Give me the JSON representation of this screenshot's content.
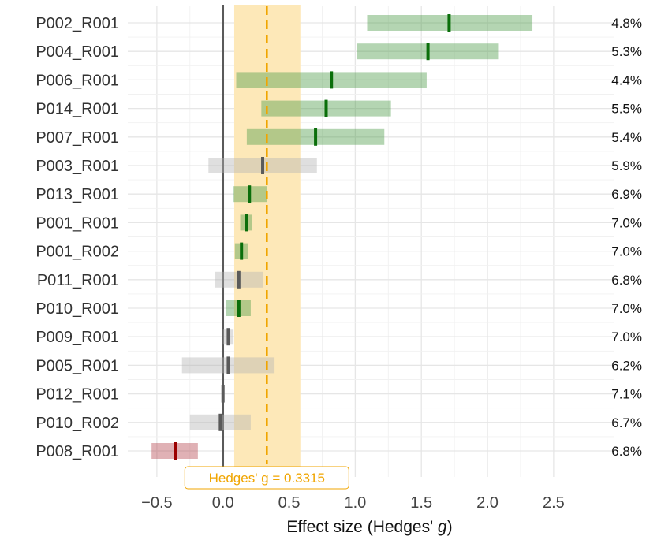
{
  "chart_data": {
    "type": "forest",
    "xlabel_prefix": "Effect size (Hedges' ",
    "xlabel_italic": "g",
    "xlabel_suffix": ")",
    "xlim": [
      -0.72,
      2.96
    ],
    "xticks": [
      -0.5,
      0.0,
      0.5,
      1.0,
      1.5,
      2.0,
      2.5
    ],
    "xtick_labels": [
      "−0.5",
      "0.0",
      "0.5",
      "1.0",
      "1.5",
      "2.0",
      "2.5"
    ],
    "grid": true,
    "null_line": 0,
    "pooled": {
      "estimate": 0.3315,
      "ci_low": 0.085,
      "ci_high": 0.585,
      "label": "Hedges' g = 0.3315"
    },
    "colors": {
      "positive": "#4d9a48",
      "positive_mark": "#0a6e0a",
      "nonsig": "#b3b3b3",
      "nonsig_mark": "#5a5a5a",
      "negative": "#b5464e",
      "negative_mark": "#9b0000",
      "pooled_band": "#fde8b8",
      "pooled_line": "#f0a500",
      "null_line": "#5a5a5a"
    },
    "studies": [
      {
        "label": "P002_R001",
        "estimate": 1.71,
        "ci_low": 1.09,
        "ci_high": 2.34,
        "weight": "4.8%",
        "class": "positive"
      },
      {
        "label": "P004_R001",
        "estimate": 1.55,
        "ci_low": 1.01,
        "ci_high": 2.08,
        "weight": "5.3%",
        "class": "positive"
      },
      {
        "label": "P006_R001",
        "estimate": 0.82,
        "ci_low": 0.1,
        "ci_high": 1.54,
        "weight": "4.4%",
        "class": "positive"
      },
      {
        "label": "P014_R001",
        "estimate": 0.78,
        "ci_low": 0.29,
        "ci_high": 1.27,
        "weight": "5.5%",
        "class": "positive"
      },
      {
        "label": "P007_R001",
        "estimate": 0.7,
        "ci_low": 0.18,
        "ci_high": 1.22,
        "weight": "5.4%",
        "class": "positive"
      },
      {
        "label": "P003_R001",
        "estimate": 0.3,
        "ci_low": -0.11,
        "ci_high": 0.71,
        "weight": "5.9%",
        "class": "nonsig"
      },
      {
        "label": "P013_R001",
        "estimate": 0.2,
        "ci_low": 0.08,
        "ci_high": 0.33,
        "weight": "6.9%",
        "class": "positive"
      },
      {
        "label": "P001_R001",
        "estimate": 0.18,
        "ci_low": 0.13,
        "ci_high": 0.22,
        "weight": "7.0%",
        "class": "positive"
      },
      {
        "label": "P001_R002",
        "estimate": 0.14,
        "ci_low": 0.09,
        "ci_high": 0.19,
        "weight": "7.0%",
        "class": "positive"
      },
      {
        "label": "P011_R001",
        "estimate": 0.12,
        "ci_low": -0.06,
        "ci_high": 0.3,
        "weight": "6.8%",
        "class": "nonsig"
      },
      {
        "label": "P010_R001",
        "estimate": 0.12,
        "ci_low": 0.02,
        "ci_high": 0.21,
        "weight": "7.0%",
        "class": "positive"
      },
      {
        "label": "P009_R001",
        "estimate": 0.04,
        "ci_low": 0.0,
        "ci_high": 0.08,
        "weight": "7.0%",
        "class": "nonsig"
      },
      {
        "label": "P005_R001",
        "estimate": 0.04,
        "ci_low": -0.31,
        "ci_high": 0.39,
        "weight": "6.2%",
        "class": "nonsig"
      },
      {
        "label": "P012_R001",
        "estimate": 0.0,
        "ci_low": -0.01,
        "ci_high": 0.01,
        "weight": "7.1%",
        "class": "nonsig"
      },
      {
        "label": "P010_R002",
        "estimate": -0.02,
        "ci_low": -0.25,
        "ci_high": 0.21,
        "weight": "6.7%",
        "class": "nonsig"
      },
      {
        "label": "P008_R001",
        "estimate": -0.36,
        "ci_low": -0.54,
        "ci_high": -0.19,
        "weight": "6.8%",
        "class": "negative"
      }
    ]
  }
}
